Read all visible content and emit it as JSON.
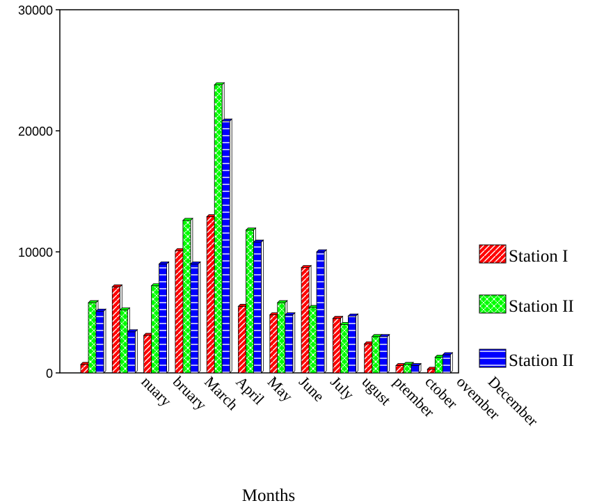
{
  "chart_data": {
    "type": "bar",
    "xlabel": "Months",
    "ylabel": "",
    "ylim": [
      0,
      30000
    ],
    "yticks": [
      "0",
      "10000",
      "20000",
      "30000"
    ],
    "grid": false,
    "legend_position": "right",
    "categories": [
      "January",
      "February",
      "March",
      "April",
      "May",
      "June",
      "July",
      "August",
      "September",
      "October",
      "November",
      "December"
    ],
    "category_labels_visible": [
      "",
      "nuary",
      "bruary",
      "March",
      "April",
      "May",
      "June",
      "July",
      "ugust",
      "ptember",
      "ctober",
      "ovember",
      "December"
    ],
    "series": [
      {
        "name": "Station I",
        "color": "#ff0000",
        "values": [
          700,
          7100,
          3100,
          10100,
          12900,
          5500,
          4800,
          8700,
          4500,
          2400,
          600,
          300
        ]
      },
      {
        "name": "Station II",
        "color": "#00ff00",
        "values": [
          5800,
          5200,
          7200,
          12600,
          23800,
          11800,
          5800,
          5400,
          4000,
          3000,
          700,
          1300
        ]
      },
      {
        "name": "Station II",
        "color": "#0000ff",
        "values": [
          5100,
          3400,
          9000,
          9000,
          20800,
          10800,
          4800,
          10000,
          4700,
          3000,
          600,
          1500
        ]
      }
    ]
  }
}
